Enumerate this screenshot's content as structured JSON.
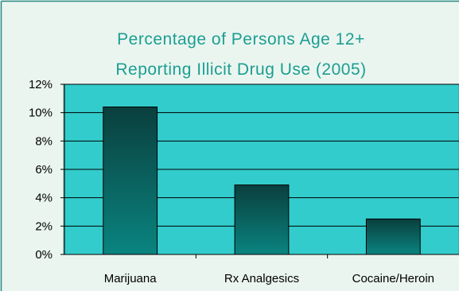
{
  "colors": {
    "page_bg": "#eaf5ef",
    "frame_border": "#2c8a86",
    "title": "#1c9e92",
    "plot_bg": "#33cccc",
    "bar_top": "#0a3f3d",
    "bar_bottom": "#0a8480",
    "gridline": "#000000",
    "axis_text": "#000000"
  },
  "chart_data": {
    "type": "bar",
    "title_lines": [
      "Percentage of Persons Age 12+",
      "Reporting Illicit Drug Use (2005)"
    ],
    "categories": [
      "Marijuana",
      "Rx Analgesics",
      "Cocaine/Heroin"
    ],
    "values": [
      10.4,
      4.9,
      2.5
    ],
    "y_ticks": [
      "0%",
      "2%",
      "4%",
      "6%",
      "8%",
      "10%",
      "12%"
    ],
    "ylim": [
      0,
      12
    ],
    "ytick_step": 2,
    "xlabel": "",
    "ylabel": "",
    "grid": true,
    "legend": "none"
  }
}
